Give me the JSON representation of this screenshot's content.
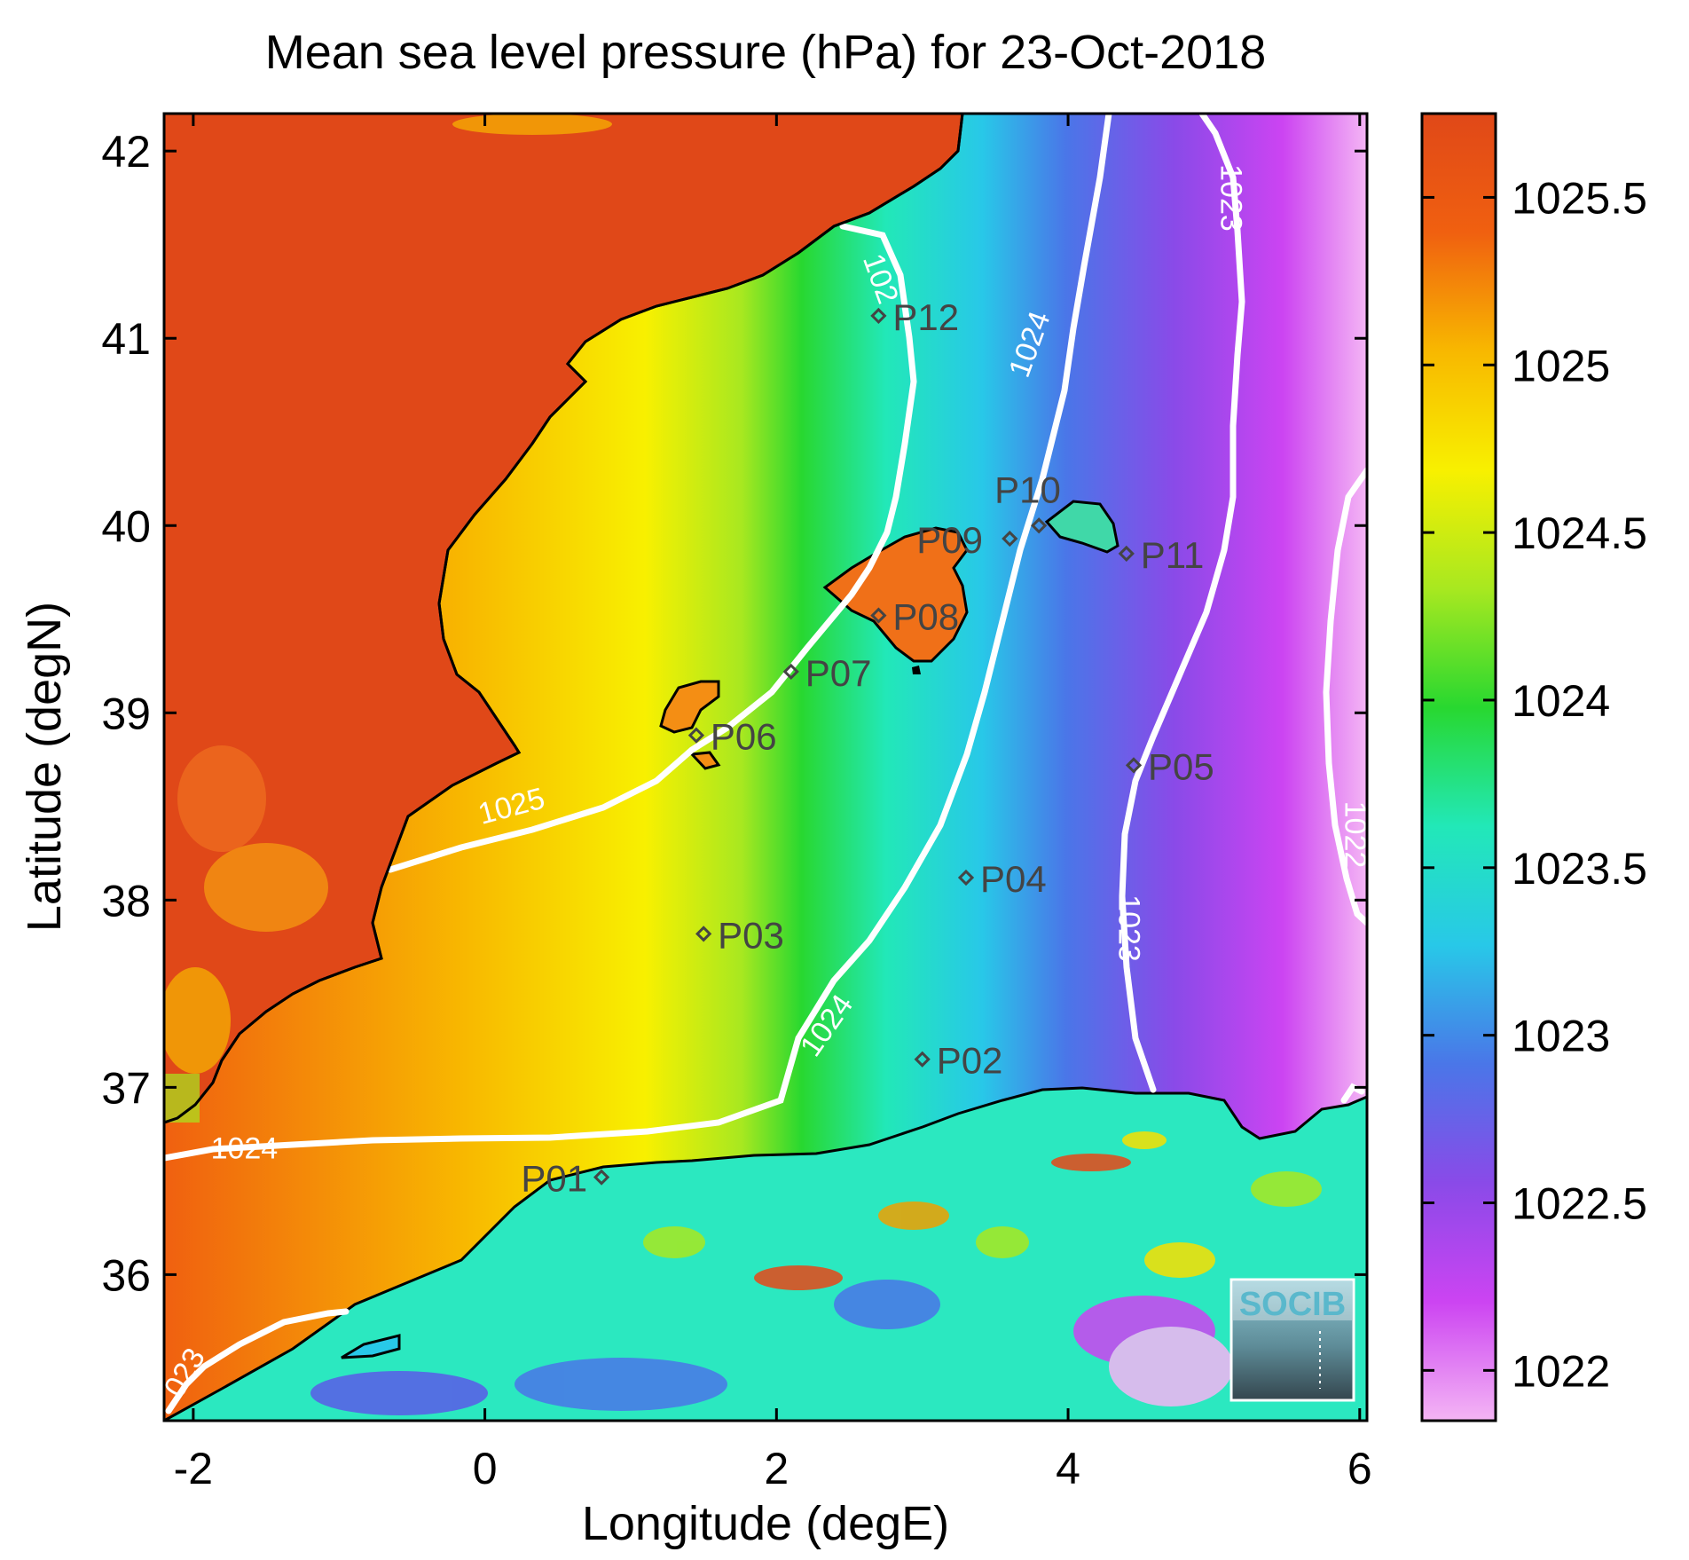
{
  "title": "Mean sea level pressure (hPa) for 23-Oct-2018",
  "xlabel": "Longitude (degE)",
  "ylabel": "Latitude (degN)",
  "chart_data": {
    "type": "heatmap",
    "title": "Mean sea level pressure (hPa) for 23-Oct-2018",
    "xlabel": "Longitude (degE)",
    "ylabel": "Latitude (degN)",
    "xlim": [
      -2.2,
      6.05
    ],
    "ylim": [
      35.22,
      42.2
    ],
    "x_ticks": [
      -2,
      0,
      2,
      4,
      6
    ],
    "y_ticks": [
      36,
      37,
      38,
      39,
      40,
      41,
      42
    ],
    "x_tick_labels": [
      "-2",
      "0",
      "2",
      "4",
      "6"
    ],
    "y_tick_labels": [
      "36",
      "37",
      "38",
      "39",
      "40",
      "41",
      "42"
    ],
    "colorbar": {
      "range": [
        1021.85,
        1025.75
      ],
      "ticks": [
        1022,
        1022.5,
        1023,
        1023.5,
        1024,
        1024.5,
        1025,
        1025.5
      ],
      "tick_labels": [
        "1022",
        "1022.5",
        "1023",
        "1023.5",
        "1024",
        "1024.5",
        "1025",
        "1025.5"
      ],
      "colors": [
        "#f4b5f4",
        "#cc44f2",
        "#8a4ae8",
        "#4a76e8",
        "#28c8e8",
        "#22e8b8",
        "#28d830",
        "#a8e820",
        "#f8f000",
        "#f8b800",
        "#f06010",
        "#e04818"
      ]
    },
    "contours": [
      {
        "level": 1025,
        "label": "1025"
      },
      {
        "level": 1024,
        "label": "1024"
      },
      {
        "level": 1023,
        "label": "1023"
      },
      {
        "level": 1022,
        "label": "1022"
      }
    ],
    "contour_labels": [
      {
        "text": "1025",
        "lon": 0.2,
        "lat": 38.45
      },
      {
        "text": "102",
        "lon": 2.65,
        "lat": 41.3
      },
      {
        "text": "1024",
        "lon": 3.8,
        "lat": 40.95
      },
      {
        "text": "1023",
        "lon": 5.05,
        "lat": 41.75
      },
      {
        "text": "1022",
        "lon": 5.9,
        "lat": 38.35
      },
      {
        "text": "1023",
        "lon": 4.35,
        "lat": 37.85
      },
      {
        "text": "1024",
        "lon": 2.4,
        "lat": 37.3
      },
      {
        "text": "1024",
        "lon": -1.65,
        "lat": 36.62
      },
      {
        "text": "023",
        "lon": -2.0,
        "lat": 35.45
      }
    ],
    "points": [
      {
        "name": "P01",
        "lon": 0.8,
        "lat": 36.52
      },
      {
        "name": "P02",
        "lon": 3.0,
        "lat": 37.15
      },
      {
        "name": "P03",
        "lon": 1.5,
        "lat": 37.82
      },
      {
        "name": "P04",
        "lon": 3.3,
        "lat": 38.12
      },
      {
        "name": "P05",
        "lon": 4.45,
        "lat": 38.72
      },
      {
        "name": "P06",
        "lon": 1.45,
        "lat": 38.88
      },
      {
        "name": "P07",
        "lon": 2.1,
        "lat": 39.22
      },
      {
        "name": "P08",
        "lon": 2.7,
        "lat": 39.52
      },
      {
        "name": "P09",
        "lon": 3.6,
        "lat": 39.93
      },
      {
        "name": "P10",
        "lon": 3.8,
        "lat": 40.0
      },
      {
        "name": "P11",
        "lon": 4.4,
        "lat": 39.85
      },
      {
        "name": "P12",
        "lon": 2.7,
        "lat": 41.12
      }
    ],
    "logo_text": "SOCIB"
  }
}
